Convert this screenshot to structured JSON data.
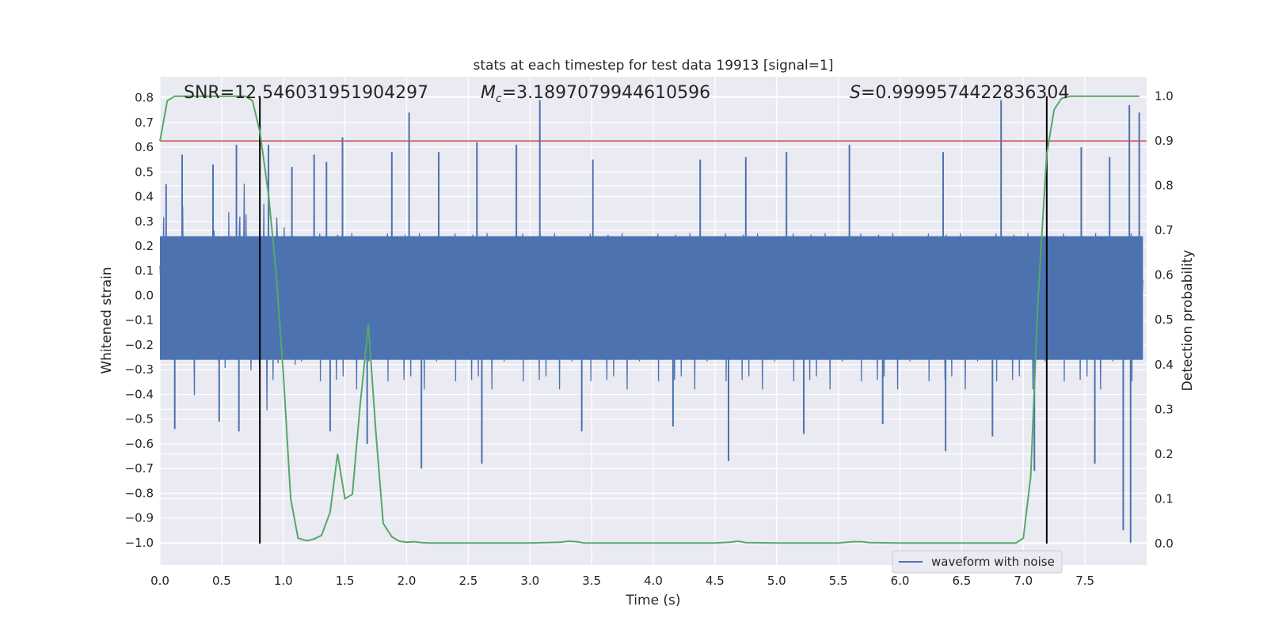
{
  "chart_data": {
    "type": "line",
    "title": "stats at each timestep for test data 19913 [signal=1]",
    "xlabel": "Time (s)",
    "ylabel": "Whitened strain",
    "y2label": "Detection probability",
    "xlim": [
      0.0,
      8.0
    ],
    "ylim": [
      -1.09,
      0.885
    ],
    "y2lim": [
      -0.048,
      1.0435
    ],
    "x_ticks": [
      "0.0",
      "0.5",
      "1.0",
      "1.5",
      "2.0",
      "2.5",
      "3.0",
      "3.5",
      "4.0",
      "4.5",
      "5.0",
      "5.5",
      "6.0",
      "6.5",
      "7.0",
      "7.5"
    ],
    "y_ticks": [
      "0.8",
      "0.7",
      "0.6",
      "0.5",
      "0.4",
      "0.3",
      "0.2",
      "0.1",
      "0.0",
      "−0.1",
      "−0.2",
      "−0.3",
      "−0.4",
      "−0.5",
      "−0.6",
      "−0.7",
      "−0.8",
      "−0.9",
      "−1.0"
    ],
    "y2_ticks": [
      "1.0",
      "0.9",
      "0.8",
      "0.7",
      "0.6",
      "0.5",
      "0.4",
      "0.3",
      "0.2",
      "0.1",
      "0.0"
    ],
    "grid": true,
    "legend": {
      "placement": "lower-right",
      "entries": [
        "waveform with noise"
      ]
    },
    "annotations": {
      "snr": "SNR=12.546031951904297",
      "mc_symbol": "M",
      "mc_sub": "c",
      "mc_value": "=3.1897079944610596",
      "s_symbol": "S",
      "s_value": "=0.9999574422836304"
    },
    "threshold_line": {
      "axis": "y2",
      "value": 0.9,
      "color": "#c44e52"
    },
    "event_lines": {
      "x": [
        0.81,
        7.19
      ],
      "color": "#000000"
    },
    "series": [
      {
        "name": "waveform with noise",
        "color": "#4c72b0",
        "axis": "y",
        "envelope_spikes_up": [
          [
            0.05,
            0.45
          ],
          [
            0.18,
            0.57
          ],
          [
            0.43,
            0.53
          ],
          [
            0.62,
            0.61
          ],
          [
            0.88,
            0.61
          ],
          [
            1.07,
            0.52
          ],
          [
            1.25,
            0.57
          ],
          [
            1.35,
            0.54
          ],
          [
            1.48,
            0.64
          ],
          [
            1.88,
            0.58
          ],
          [
            2.02,
            0.74
          ],
          [
            2.26,
            0.58
          ],
          [
            2.57,
            0.62
          ],
          [
            2.89,
            0.61
          ],
          [
            3.08,
            0.79
          ],
          [
            3.51,
            0.55
          ],
          [
            4.38,
            0.55
          ],
          [
            4.75,
            0.56
          ],
          [
            5.08,
            0.58
          ],
          [
            5.59,
            0.61
          ],
          [
            6.35,
            0.58
          ],
          [
            6.82,
            0.79
          ],
          [
            7.47,
            0.6
          ],
          [
            7.7,
            0.56
          ],
          [
            7.86,
            0.77
          ],
          [
            7.94,
            0.74
          ]
        ],
        "envelope_spikes_down": [
          [
            0.12,
            -0.54
          ],
          [
            0.48,
            -0.51
          ],
          [
            0.64,
            -0.55
          ],
          [
            1.38,
            -0.55
          ],
          [
            1.68,
            -0.6
          ],
          [
            2.12,
            -0.7
          ],
          [
            2.61,
            -0.68
          ],
          [
            3.42,
            -0.55
          ],
          [
            4.16,
            -0.53
          ],
          [
            4.61,
            -0.67
          ],
          [
            5.22,
            -0.56
          ],
          [
            5.86,
            -0.52
          ],
          [
            6.37,
            -0.63
          ],
          [
            6.75,
            -0.57
          ],
          [
            7.09,
            -0.71
          ],
          [
            7.58,
            -0.68
          ],
          [
            7.81,
            -0.95
          ],
          [
            7.87,
            -1.0
          ]
        ]
      },
      {
        "name": "detection probability",
        "color": "#55a868",
        "axis": "y2",
        "x": [
          0.0,
          0.06,
          0.12,
          0.19,
          0.25,
          0.31,
          0.38,
          0.44,
          0.5,
          0.56,
          0.62,
          0.69,
          0.75,
          0.81,
          0.88,
          0.94,
          1.0,
          1.06,
          1.12,
          1.19,
          1.25,
          1.31,
          1.38,
          1.44,
          1.5,
          1.56,
          1.62,
          1.69,
          1.75,
          1.81,
          1.88,
          1.94,
          2.0,
          2.06,
          2.12,
          2.19,
          2.5,
          3.0,
          3.25,
          3.31,
          3.38,
          3.44,
          3.5,
          4.0,
          4.5,
          4.62,
          4.69,
          4.75,
          5.0,
          5.5,
          5.62,
          5.69,
          5.75,
          6.0,
          6.5,
          6.94,
          7.0,
          7.06,
          7.12,
          7.19,
          7.25,
          7.31,
          7.38,
          7.5,
          7.94
        ],
        "y": [
          0.9,
          0.99,
          1.0,
          1.0,
          1.0,
          1.0,
          1.0,
          1.0,
          1.0,
          1.0,
          1.0,
          1.0,
          0.99,
          0.92,
          0.78,
          0.61,
          0.38,
          0.1,
          0.012,
          0.006,
          0.01,
          0.018,
          0.07,
          0.2,
          0.1,
          0.11,
          0.3,
          0.49,
          0.25,
          0.045,
          0.015,
          0.005,
          0.003,
          0.004,
          0.002,
          0.001,
          0.001,
          0.001,
          0.003,
          0.005,
          0.004,
          0.001,
          0.001,
          0.001,
          0.001,
          0.003,
          0.005,
          0.002,
          0.001,
          0.001,
          0.004,
          0.004,
          0.002,
          0.001,
          0.001,
          0.001,
          0.012,
          0.15,
          0.55,
          0.87,
          0.97,
          0.995,
          1.0,
          1.0,
          1.0
        ]
      }
    ]
  }
}
